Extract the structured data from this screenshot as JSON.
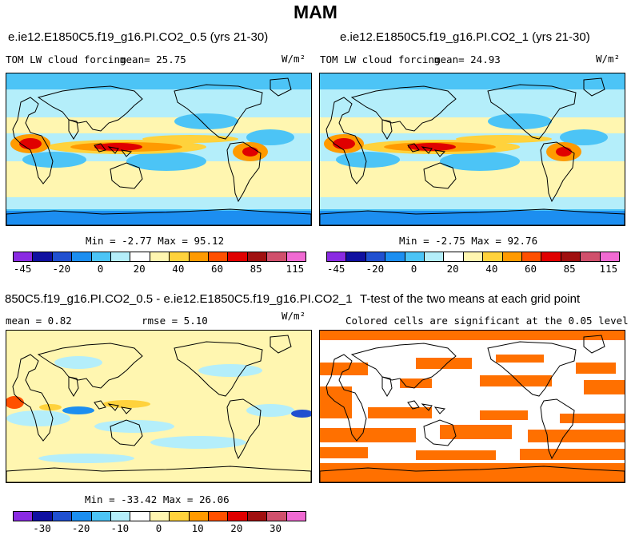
{
  "title": "MAM",
  "panels": [
    {
      "id": "top-left",
      "title": "e.ie12.E1850C5.f19_g16.PI.CO2_0.5 (yrs 21-30)",
      "variable": "TOM LW cloud forcing",
      "stat": "mean=  25.75",
      "units": "W/m²",
      "minmax": "Min =  -2.77 Max =  95.12"
    },
    {
      "id": "top-right",
      "title": "e.ie12.E1850C5.f19_g16.PI.CO2_1 (yrs 21-30)",
      "variable": "TOM LW cloud forcing",
      "stat": "mean=  24.93",
      "units": "W/m²",
      "minmax": "Min =  -2.75 Max =  92.76"
    },
    {
      "id": "bottom-left",
      "title": "850C5.f19_g16.PI.CO2_0.5 - e.ie12.E1850C5.f19_g16.PI.CO2_1",
      "stat_mean": "mean =   0.82",
      "stat_rmse": "rmse =   5.10",
      "units": "W/m²",
      "minmax": "Min = -33.42 Max =  26.06"
    },
    {
      "id": "bottom-right",
      "title": "T-test of the two means at each grid point",
      "subtitle": "Colored cells are significant at the 0.05 level"
    }
  ],
  "colorbar_top": {
    "colors": [
      "#8a2be2",
      "#1010a0",
      "#2050d0",
      "#1c8ef0",
      "#4cc4f6",
      "#b4eefa",
      "#ffffff",
      "#fff6b0",
      "#ffd23c",
      "#ff9a00",
      "#ff5000",
      "#e00000",
      "#a01010",
      "#d0506c",
      "#f06ad2"
    ],
    "ticks": [
      "-45",
      "-20",
      "0",
      "20",
      "40",
      "60",
      "85",
      "115"
    ]
  },
  "colorbar_diff": {
    "colors": [
      "#8a2be2",
      "#1010a0",
      "#2050d0",
      "#1c8ef0",
      "#4cc4f6",
      "#b4eefa",
      "#ffffff",
      "#fff6b0",
      "#ffd23c",
      "#ff9a00",
      "#ff5000",
      "#e00000",
      "#a01010",
      "#d0506c",
      "#f06ad2"
    ],
    "ticks": [
      "-30",
      "-20",
      "-10",
      "0",
      "10",
      "20",
      "30"
    ]
  }
}
